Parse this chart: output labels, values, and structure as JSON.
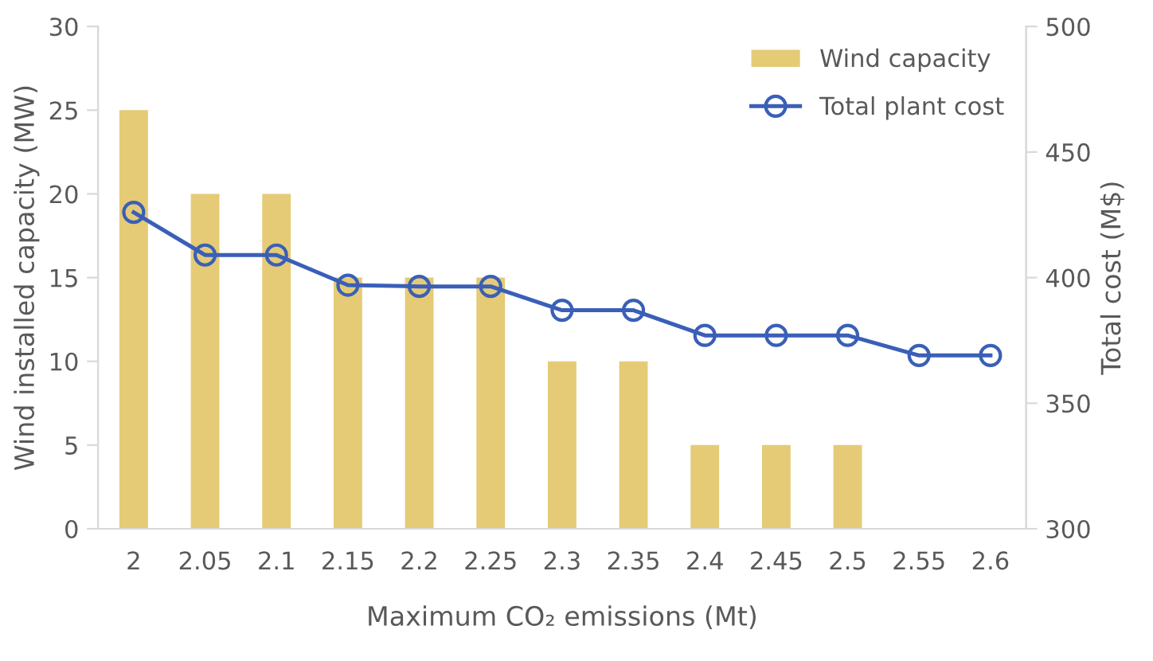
{
  "chart_data": {
    "type": "bar",
    "xlabel": "Maximum CO₂ emissions (Mt)",
    "ylabel": "Wind installed capacity (MW)",
    "y2label": "Total cost (M$)",
    "categories": [
      "2",
      "2.05",
      "2.1",
      "2.15",
      "2.2",
      "2.25",
      "2.3",
      "2.35",
      "2.4",
      "2.45",
      "2.5",
      "2.55",
      "2.6"
    ],
    "series": [
      {
        "name": "Wind capacity",
        "color": "#e5cb76",
        "values": [
          25,
          20,
          20,
          15,
          15,
          15,
          10,
          10,
          5,
          5,
          5,
          0,
          0
        ]
      },
      {
        "name": "Total plant cost",
        "type": "line",
        "axis": "y2",
        "color": "#3a5fb8",
        "marker": "circle",
        "values": [
          426,
          409,
          409,
          397,
          396.5,
          396.5,
          387,
          387,
          377,
          377,
          377,
          369,
          369
        ]
      }
    ],
    "ylim": [
      0,
      30
    ],
    "yticks": [
      0,
      5,
      10,
      15,
      20,
      25,
      30
    ],
    "y2lim": [
      300,
      500
    ],
    "y2ticks": [
      300,
      350,
      400,
      450,
      500
    ],
    "grid": false,
    "legend": "top right"
  }
}
